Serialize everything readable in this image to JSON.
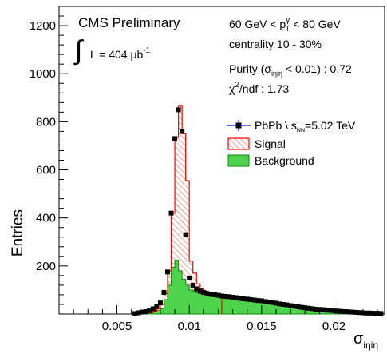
{
  "chart_data": {
    "type": "histogram",
    "title": "",
    "xlabel": "σ",
    "xlabel_sub": "iηiη",
    "ylabel": "Entries",
    "xlim": [
      0.001,
      0.0235
    ],
    "ylim": [
      0,
      1280
    ],
    "x_ticks": [
      0.005,
      0.01,
      0.015,
      0.02
    ],
    "x_tick_labels": [
      "0.005",
      "0.01",
      "0.015",
      "0.02"
    ],
    "y_ticks": [
      200,
      400,
      600,
      800,
      1000,
      1200
    ],
    "y_tick_labels": [
      "200",
      "400",
      "600",
      "800",
      "1000",
      "1200"
    ],
    "bin_width": 0.00025,
    "data": {
      "name": "PbPb",
      "x": [
        0.00625,
        0.0065,
        0.00675,
        0.007,
        0.00725,
        0.0075,
        0.00775,
        0.008,
        0.00825,
        0.0085,
        0.00875,
        0.009,
        0.00925,
        0.0095,
        0.00975,
        0.01,
        0.01025,
        0.0105,
        0.01075,
        0.011,
        0.01125,
        0.0115,
        0.01175,
        0.012,
        0.01225,
        0.0125,
        0.01275,
        0.013,
        0.01325,
        0.0135,
        0.01375,
        0.014,
        0.01425,
        0.0145,
        0.01475,
        0.015,
        0.01525,
        0.0155,
        0.01575,
        0.016,
        0.01625,
        0.0165,
        0.01675,
        0.017,
        0.01725,
        0.0175,
        0.01775,
        0.018,
        0.01825,
        0.0185,
        0.01875,
        0.019,
        0.01925,
        0.0195,
        0.01975,
        0.02,
        0.02025,
        0.0205,
        0.02075,
        0.021,
        0.02125,
        0.0215,
        0.02175,
        0.022,
        0.02225,
        0.0225,
        0.02275,
        0.023,
        0.02325
      ],
      "y": [
        2,
        5,
        8,
        10,
        14,
        22,
        32,
        46,
        90,
        175,
        420,
        730,
        850,
        760,
        330,
        150,
        120,
        105,
        95,
        90,
        85,
        82,
        80,
        78,
        75,
        73,
        72,
        70,
        68,
        65,
        63,
        62,
        60,
        58,
        56,
        55,
        52,
        50,
        48,
        45,
        42,
        40,
        38,
        35,
        33,
        30,
        28,
        26,
        24,
        22,
        20,
        19,
        18,
        16,
        15,
        14,
        12,
        11,
        10,
        9,
        8,
        7,
        6,
        5,
        4,
        4,
        3,
        3,
        2
      ]
    },
    "series": [
      {
        "name": "Signal",
        "color": "#ff0000",
        "fill": "hatch",
        "bins_low": [
          0.00725,
          0.0075,
          0.00775,
          0.008,
          0.00825,
          0.0085,
          0.00875,
          0.009,
          0.00925,
          0.0095,
          0.00975,
          0.01,
          0.01025,
          0.0105,
          0.01075,
          0.011,
          0.01125,
          0.0115,
          0.01175,
          0.012
        ],
        "values": [
          5,
          10,
          22,
          40,
          85,
          180,
          420,
          735,
          865,
          750,
          555,
          220,
          170,
          125,
          105,
          95,
          90,
          85,
          82,
          80
        ]
      },
      {
        "name": "Background",
        "color": "#0b8a0b",
        "fill": "#4ed34e",
        "bins_low": [
          0.00675,
          0.007,
          0.00725,
          0.0075,
          0.00775,
          0.008,
          0.00825,
          0.0085,
          0.00875,
          0.009,
          0.00925,
          0.0095,
          0.00975,
          0.01,
          0.01025,
          0.0105,
          0.01075,
          0.011,
          0.01125,
          0.0115,
          0.01175,
          0.012,
          0.01225,
          0.0125,
          0.01275,
          0.013,
          0.01325,
          0.0135,
          0.01375,
          0.014,
          0.01425,
          0.0145,
          0.01475,
          0.015,
          0.01525,
          0.0155,
          0.01575,
          0.016,
          0.01625,
          0.0165,
          0.01675,
          0.017,
          0.01725,
          0.0175,
          0.01775,
          0.018,
          0.01825,
          0.0185,
          0.01875,
          0.019,
          0.01925,
          0.0195,
          0.01975,
          0.02,
          0.02025,
          0.0205,
          0.02075,
          0.021
        ],
        "values": [
          3,
          5,
          8,
          12,
          16,
          22,
          60,
          120,
          195,
          225,
          180,
          145,
          120,
          100,
          95,
          88,
          84,
          80,
          78,
          76,
          74,
          72,
          70,
          68,
          66,
          63,
          60,
          58,
          56,
          54,
          52,
          50,
          48,
          46,
          44,
          42,
          40,
          37,
          34,
          32,
          30,
          28,
          26,
          24,
          22,
          20,
          19,
          17,
          15,
          14,
          12,
          11,
          10,
          9,
          7,
          6,
          5,
          4
        ]
      }
    ]
  },
  "annotations": {
    "experiment": "CMS Preliminary",
    "lumi_prefix": "L = 404",
    "lumi_unit": "μb",
    "lumi_exp": "-1",
    "pt_left": "60 GeV < p",
    "pt_sup": "γ",
    "pt_sub": "T",
    "pt_right": " < 80 GeV",
    "centrality": "centrality 10 - 30%",
    "purity_prefix": "Purity (σ",
    "purity_sub": "iηiη",
    "purity_suffix": " < 0.01) : 0.72",
    "chi2_base": "χ",
    "chi2_sup": "2",
    "chi2_suffix": "/ndf : 1.73"
  },
  "legend": {
    "data_label_prefix": "PbPb  \\ s",
    "data_label_sub": "NN",
    "data_label_suffix": "=5.02 TeV",
    "signal_label": "Signal",
    "background_label": "Background"
  }
}
